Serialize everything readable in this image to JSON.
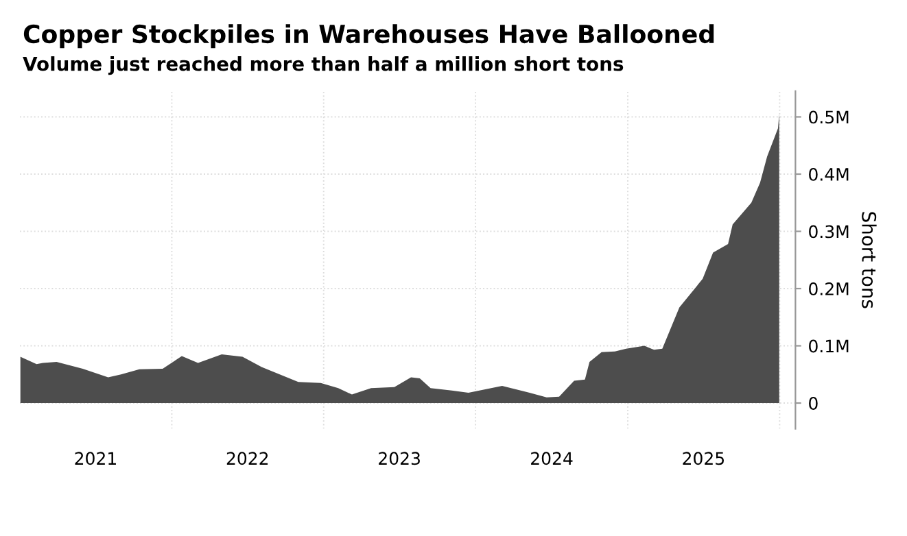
{
  "chart_data": {
    "type": "area",
    "title": "Copper Stockpiles in Warehouses Have Ballooned",
    "subtitle": "Volume just reached more than half a million short tons",
    "ylabel": "Short tons",
    "x": [
      "2021-01-02",
      "2021-02-10",
      "2021-02-25",
      "2021-03-30",
      "2021-06-01",
      "2021-08-01",
      "2021-09-01",
      "2021-10-15",
      "2021-12-10",
      "2022-01-25",
      "2022-03-05",
      "2022-05-01",
      "2022-06-20",
      "2022-08-05",
      "2022-11-01",
      "2022-12-25",
      "2023-02-05",
      "2023-03-10",
      "2023-04-25",
      "2023-06-20",
      "2023-07-30",
      "2023-08-20",
      "2023-09-15",
      "2023-11-05",
      "2023-12-15",
      "2024-03-05",
      "2024-05-10",
      "2024-06-20",
      "2024-07-20",
      "2024-08-25",
      "2024-09-20",
      "2024-10-01",
      "2024-10-30",
      "2024-12-01",
      "2024-12-28",
      "2025-02-10",
      "2025-03-05",
      "2025-03-25",
      "2025-05-05",
      "2025-06-30",
      "2025-07-25",
      "2025-08-30",
      "2025-09-10",
      "2025-10-25",
      "2025-11-15",
      "2025-12-02",
      "2025-12-28",
      "2025-12-31"
    ],
    "series": [
      {
        "color": "#4d4d4d",
        "values": [
          81000,
          68000,
          70000,
          72000,
          60000,
          45000,
          50000,
          59000,
          60000,
          82000,
          70000,
          85000,
          81000,
          63000,
          37000,
          35000,
          26000,
          15000,
          26000,
          28000,
          45000,
          43000,
          26000,
          22000,
          18000,
          30000,
          18000,
          10000,
          11000,
          39000,
          41000,
          72000,
          89000,
          90000,
          95000,
          100000,
          93000,
          95000,
          167000,
          217000,
          263000,
          278000,
          312000,
          350000,
          385000,
          431000,
          480000,
          505000
        ]
      }
    ],
    "xlim": [
      "2021-01-01",
      "2026-02-08"
    ],
    "xticks": [
      {
        "value": "2021-07-02",
        "label": "2021"
      },
      {
        "value": "2022-07-02",
        "label": "2022"
      },
      {
        "value": "2023-07-02",
        "label": "2023"
      },
      {
        "value": "2024-07-02",
        "label": "2024"
      },
      {
        "value": "2025-07-02",
        "label": "2025"
      }
    ],
    "ylim": [
      -45000,
      545000
    ],
    "yticks": [
      {
        "value": 0,
        "label": "0"
      },
      {
        "value": 100000,
        "label": "0.1M"
      },
      {
        "value": 200000,
        "label": "0.2M"
      },
      {
        "value": 300000,
        "label": "0.3M"
      },
      {
        "value": 400000,
        "label": "0.4M"
      },
      {
        "value": 500000,
        "label": "0.5M"
      }
    ],
    "grid": true,
    "legend": false
  }
}
